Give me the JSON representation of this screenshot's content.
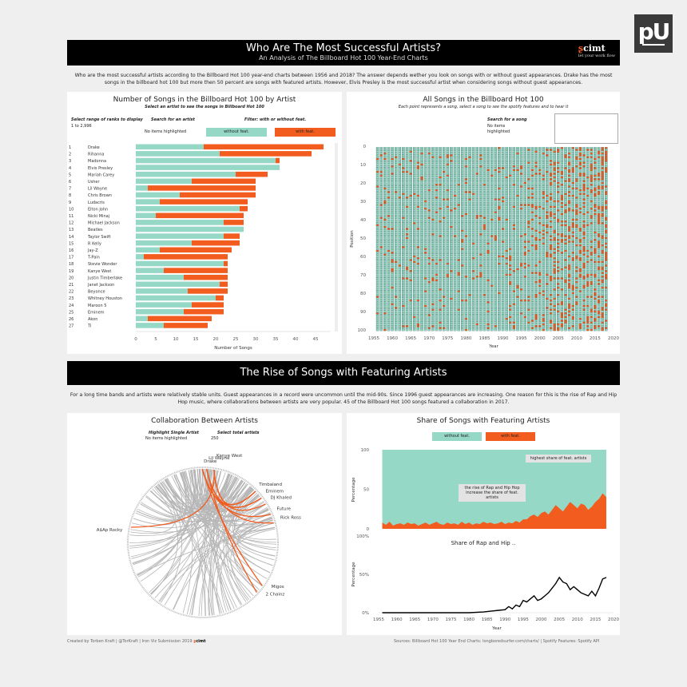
{
  "logo": {
    "text": "pU"
  },
  "header": {
    "title": "Who Are The Most Successful Artists?",
    "subtitle": "An Analysis of The Billboard Hot 100 Year-End Charts",
    "brand": "cimt",
    "brand_tagline": "let your work flow"
  },
  "intro_text": "Who are the most successful artists according to the Billboard Hot 100 year-end charts between 1956 and 2018? The answer depends wether you look on songs with or without guest appearances. Drake has the most songs in the billboard hot 100 but more then 50 percent are songs with featured artists. However, Elvis Presley is the most successful artist when considering songs without guest appearances.",
  "panel1": {
    "title": "Number of Songs in the Billboard Hot 100 by Artist",
    "subtitle": "Select an artist to see the songs in Billboard Hot 100",
    "range_label": "Select range of ranks to display",
    "range_value": "1 to 2,996",
    "search_label": "Search for an artist",
    "highlight_text": "No items highlighted",
    "filter_label": "Filter: with or without feat.",
    "legend_without": "without feat.",
    "legend_with": "with feat.",
    "xlabel": "Number of Songs"
  },
  "panel2": {
    "title": "All Songs in the Billboard Hot 100",
    "subtitle": "Each point represents a song, select a song to see the spotify features and to hear it",
    "search_label": "Search for a song",
    "highlight_text": "No items highlighted",
    "ylabel": "Position",
    "xlabel": "Year"
  },
  "section2": {
    "title": "The Rise of Songs with Featuring Artists",
    "text": "For a long time bands and artists were relatively stable units. Guest appearances in a record were uncommon until the mid-90s. Since 1996 guest appearances are increasing. One reason for this is the rise of Rap and Hip Hop music, where collaborations between artists are very popular. 45 of the Billboard Hot 100 songs featured a collaboration in 2017."
  },
  "panel3": {
    "title": "Collaboration Between Artists",
    "highlight_label": "Highlight Single Artist",
    "highlight_text": "No items highlighted",
    "total_label": "Select total artists",
    "total_value": "250",
    "artists": [
      "Drake",
      "Lil Wayne",
      "Kanye West",
      "Timbaland",
      "Eminem",
      "DJ Khaled",
      "Future",
      "Rick Ross",
      "A$Ap Rocky",
      "Migos",
      "2 Chainz"
    ]
  },
  "panel4": {
    "title": "Share of Songs with Featuring Artists",
    "legend_without": "without feat.",
    "legend_with": "with feat.",
    "annot1": "highest share of feat. artists",
    "annot2": "the rise of Rap and Hip Hop increase the share of feat. artists",
    "ylabel": "Percentage",
    "subtitle2": "Share of Rap and Hip ..",
    "ylabel2": "Percentage",
    "xlabel": "Year"
  },
  "footer": {
    "left": "Created by Torben Kraft | @TorKraft | Iron Viz Submission 2019",
    "left_brand": "cimt",
    "right": "Sources: Billboard Hot 100 Year End Charts: longboredsurfer.com/charts/ | Spotify Features: Spotify API"
  },
  "colors": {
    "without": "#96d8c6",
    "with": "#f25c1f",
    "black": "#000000"
  },
  "chart_data": [
    {
      "type": "bar",
      "title": "Number of Songs in the Billboard Hot 100 by Artist",
      "xlabel": "Number of Songs",
      "xlim": [
        0,
        47
      ],
      "xticks": [
        0,
        5,
        10,
        15,
        20,
        25,
        30,
        35,
        40,
        45
      ],
      "ranks": [
        "1",
        "2",
        "3",
        "4",
        "5",
        "6",
        "7",
        "8",
        "9",
        "10",
        "11",
        "12",
        "13",
        "14",
        "15",
        "16",
        "17",
        "18",
        "19",
        "20",
        "21",
        "22",
        "23",
        "24",
        "25",
        "26",
        "27"
      ],
      "categories": [
        "Drake",
        "Rihanna",
        "Madonna",
        "Elvis Presley",
        "Mariah Carey",
        "Usher",
        "Lil Wayne",
        "Chris Brown",
        "Ludacris",
        "Elton John",
        "Nicki Minaj",
        "Michael Jackson",
        "Beatles",
        "Taylor Swift",
        "R Kelly",
        "Jay-Z",
        "T-Pain",
        "Stevie Wonder",
        "Kanye West",
        "Justin Timberlake",
        "Janet Jackson",
        "Beyonce",
        "Whitney Houston",
        "Maroon 5",
        "Eminem",
        "Akon",
        "TI"
      ],
      "series": [
        {
          "name": "without feat.",
          "values": [
            17,
            21,
            35,
            36,
            25,
            14,
            3,
            11,
            6,
            26,
            5,
            22,
            27,
            22,
            14,
            6,
            2,
            22,
            7,
            12,
            21,
            13,
            20,
            14,
            12,
            3,
            7
          ]
        },
        {
          "name": "with feat.",
          "values": [
            30,
            23,
            1,
            0,
            8,
            16,
            27,
            19,
            22,
            2,
            22,
            5,
            0,
            4,
            12,
            18,
            21,
            1,
            16,
            11,
            2,
            10,
            2,
            8,
            10,
            16,
            11
          ]
        }
      ]
    },
    {
      "type": "scatter",
      "title": "All Songs in the Billboard Hot 100",
      "xlabel": "Year",
      "ylabel": "Position",
      "xlim": [
        1955,
        2020
      ],
      "ylim": [
        0,
        100
      ],
      "xticks": [
        1955,
        1960,
        1965,
        1970,
        1975,
        1980,
        1985,
        1990,
        1995,
        2000,
        2005,
        2010,
        2015,
        2020
      ],
      "yticks": [
        0,
        10,
        20,
        30,
        40,
        50,
        60,
        70,
        80,
        90,
        100
      ],
      "x_range": [
        1956,
        2018
      ],
      "y_range": [
        1,
        100
      ],
      "series": [
        {
          "name": "without feat."
        },
        {
          "name": "with feat."
        }
      ]
    },
    {
      "type": "area",
      "title": "Share of Songs with Featuring Artists",
      "ylabel": "Percentage",
      "ylim": [
        0,
        100
      ],
      "yticks": [
        0,
        50,
        100
      ],
      "x": [
        1956,
        1957,
        1958,
        1959,
        1960,
        1961,
        1962,
        1963,
        1964,
        1965,
        1966,
        1967,
        1968,
        1969,
        1970,
        1971,
        1972,
        1973,
        1974,
        1975,
        1976,
        1977,
        1978,
        1979,
        1980,
        1981,
        1982,
        1983,
        1984,
        1985,
        1986,
        1987,
        1988,
        1989,
        1990,
        1991,
        1992,
        1993,
        1994,
        1995,
        1996,
        1997,
        1998,
        1999,
        2000,
        2001,
        2002,
        2003,
        2004,
        2005,
        2006,
        2007,
        2008,
        2009,
        2010,
        2011,
        2012,
        2013,
        2014,
        2015,
        2016,
        2017,
        2018
      ],
      "series": [
        {
          "name": "with feat.",
          "values": [
            8,
            5,
            9,
            4,
            6,
            7,
            5,
            8,
            6,
            7,
            4,
            6,
            8,
            5,
            7,
            9,
            6,
            5,
            8,
            6,
            7,
            5,
            9,
            6,
            8,
            5,
            7,
            6,
            9,
            7,
            8,
            6,
            7,
            9,
            6,
            8,
            7,
            10,
            8,
            12,
            12,
            16,
            18,
            15,
            20,
            22,
            18,
            24,
            30,
            26,
            22,
            28,
            34,
            30,
            26,
            32,
            30,
            24,
            28,
            34,
            38,
            45,
            40
          ]
        }
      ]
    },
    {
      "type": "line",
      "title": "Share of Rap and Hip ..",
      "xlabel": "Year",
      "ylabel": "Percentage",
      "xlim": [
        1955,
        2020
      ],
      "ylim": [
        0,
        100
      ],
      "xticks": [
        1955,
        1960,
        1965,
        1970,
        1975,
        1980,
        1985,
        1990,
        1995,
        2000,
        2005,
        2010,
        2015,
        2020
      ],
      "yticks": [
        "0%",
        "50%",
        "100%"
      ],
      "x": [
        1956,
        1960,
        1965,
        1970,
        1975,
        1980,
        1984,
        1986,
        1988,
        1990,
        1991,
        1992,
        1993,
        1994,
        1995,
        1996,
        1997,
        1998,
        1999,
        2000,
        2001,
        2002,
        2003,
        2004,
        2005,
        2006,
        2007,
        2008,
        2009,
        2010,
        2011,
        2012,
        2013,
        2014,
        2015,
        2016,
        2017,
        2018
      ],
      "series": [
        {
          "name": "Rap and Hip Hop",
          "values": [
            0,
            0,
            0,
            0,
            0,
            0,
            1,
            2,
            3,
            4,
            8,
            5,
            10,
            8,
            16,
            14,
            18,
            22,
            16,
            18,
            22,
            26,
            32,
            38,
            46,
            40,
            38,
            30,
            34,
            30,
            26,
            24,
            22,
            28,
            22,
            32,
            44,
            46
          ]
        }
      ]
    }
  ]
}
